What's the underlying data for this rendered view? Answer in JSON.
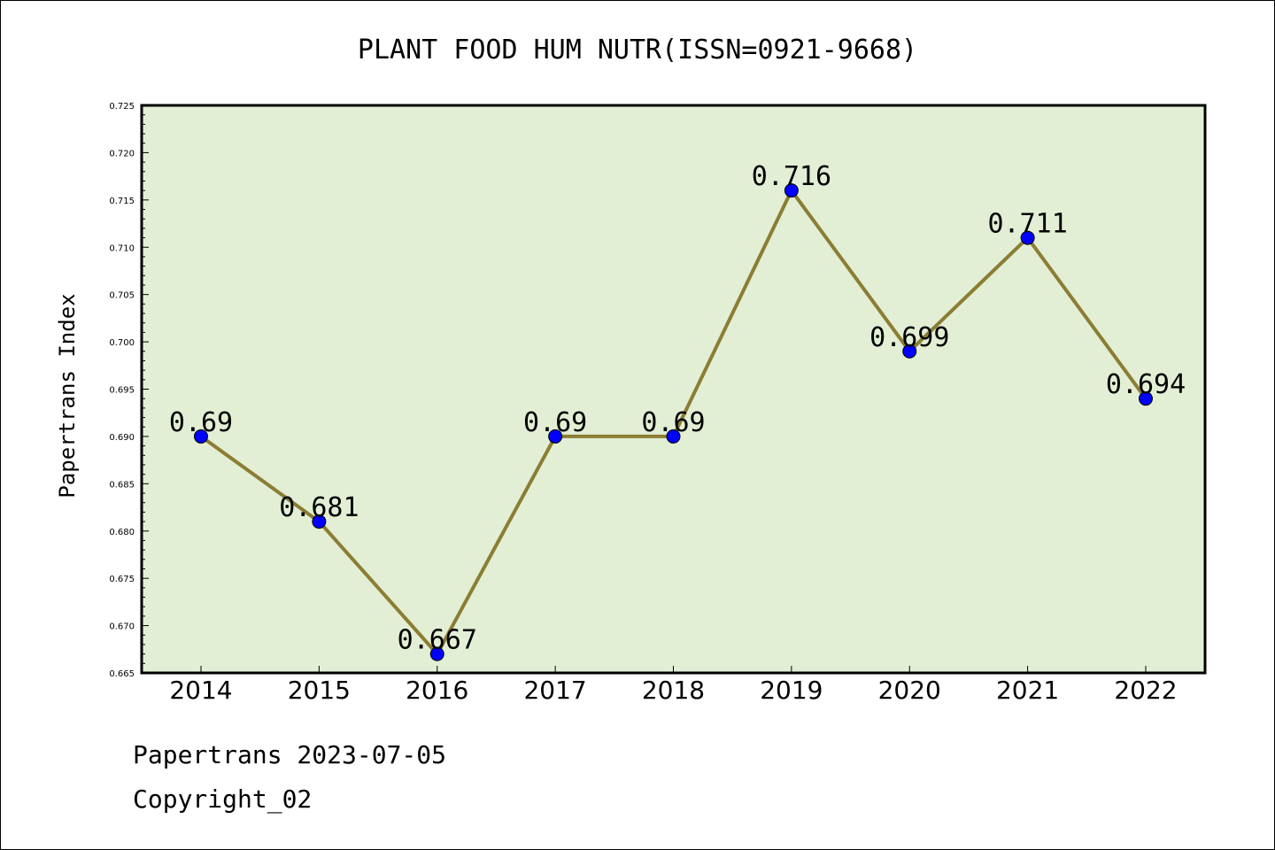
{
  "chart_data": {
    "type": "line",
    "title": "PLANT FOOD HUM NUTR(ISSN=0921-9668)",
    "xlabel": "",
    "ylabel": "Papertrans Index",
    "categories": [
      "2014",
      "2015",
      "2016",
      "2017",
      "2018",
      "2019",
      "2020",
      "2021",
      "2022"
    ],
    "values": [
      0.69,
      0.681,
      0.667,
      0.69,
      0.69,
      0.716,
      0.699,
      0.711,
      0.694
    ],
    "data_labels": [
      "0.69",
      "0.681",
      "0.667",
      "0.69",
      "0.69",
      "0.716",
      "0.699",
      "0.711",
      "0.694"
    ],
    "ylim": [
      0.665,
      0.725
    ],
    "yticks": [
      "0.665",
      "0.670",
      "0.675",
      "0.680",
      "0.685",
      "0.690",
      "0.695",
      "0.700",
      "0.705",
      "0.710",
      "0.715",
      "0.720",
      "0.725"
    ],
    "grid": false,
    "legend": "none",
    "colors": {
      "plot_background": "#e2efd5",
      "line": "#8b7d33",
      "marker": "#0000ff"
    }
  },
  "footer": {
    "date_line": "Papertrans 2023-07-05",
    "copyright": "Copyright_02"
  }
}
